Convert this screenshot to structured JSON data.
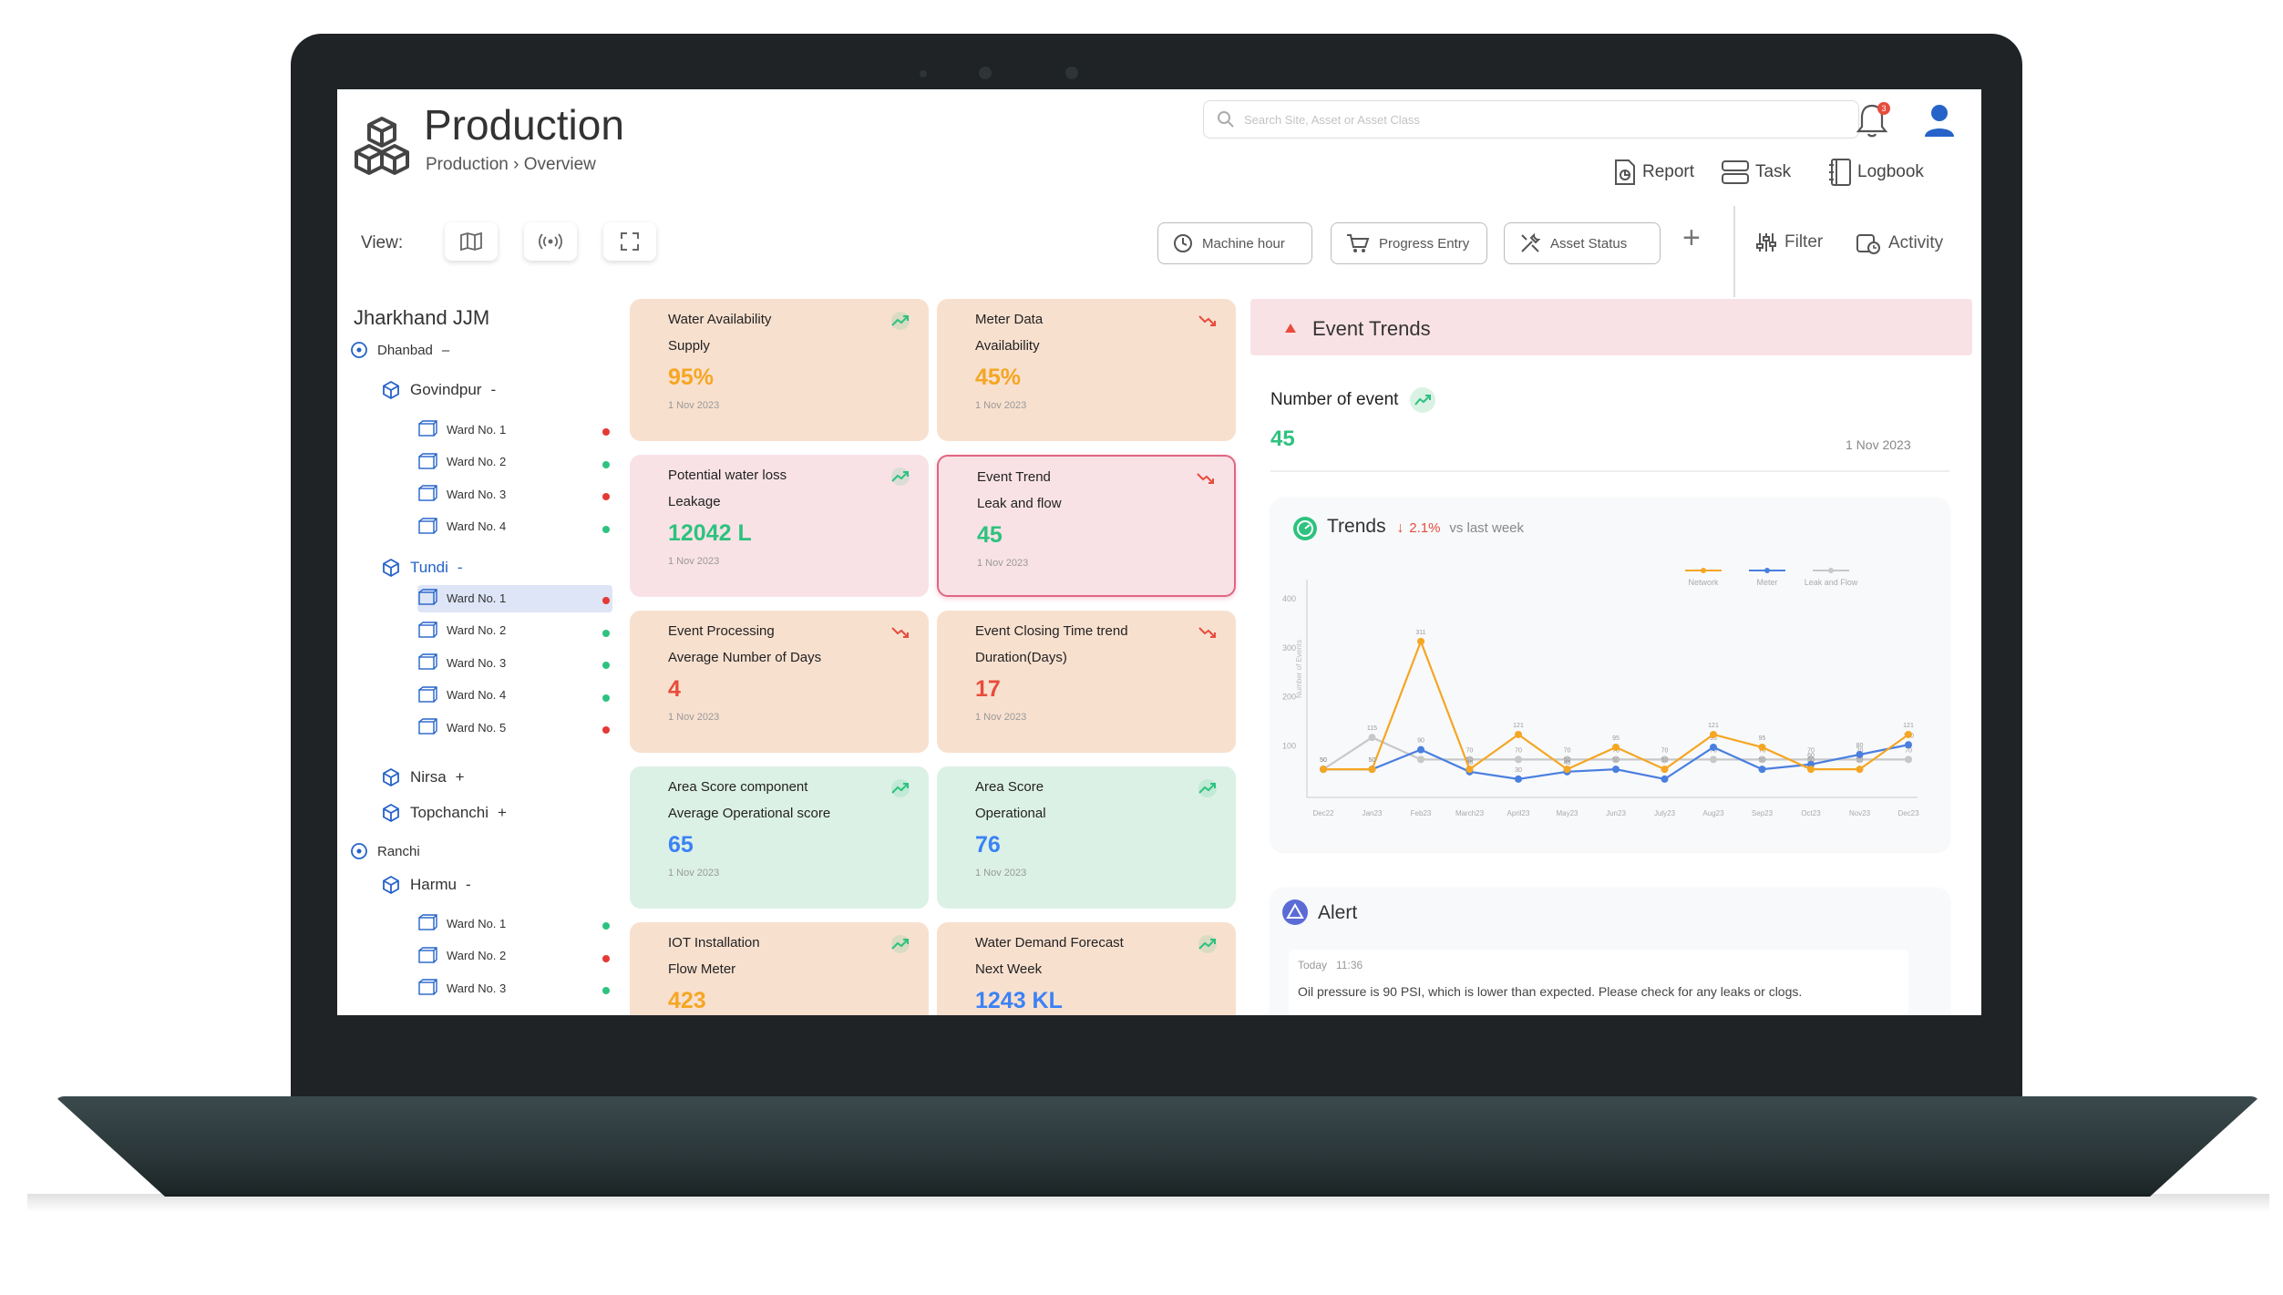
{
  "header": {
    "title": "Production",
    "breadcrumb": "Production › Overview",
    "search_placeholder": "Search Site, Asset or Asset Class",
    "notification_count": "3",
    "links": {
      "report": "Report",
      "task": "Task",
      "logbook": "Logbook"
    }
  },
  "toolbar": {
    "view_label": "View:",
    "buttons": {
      "machine_hour": "Machine hour",
      "progress_entry": "Progress Entry",
      "asset_status": "Asset Status"
    },
    "add": "+",
    "filter": "Filter",
    "activity": "Activity"
  },
  "sidebar": {
    "title": "Jharkhand JJM",
    "dhanbad": {
      "label": "Dhanbad",
      "toggle": "–"
    },
    "govindpur": {
      "label": "Govindpur",
      "toggle": "-",
      "wards": [
        {
          "label": "Ward No. 1",
          "status": "red"
        },
        {
          "label": "Ward No. 2",
          "status": "green"
        },
        {
          "label": "Ward No. 3",
          "status": "red"
        },
        {
          "label": "Ward No. 4",
          "status": "green"
        }
      ]
    },
    "tundi": {
      "label": "Tundi",
      "toggle": "-",
      "wards": [
        {
          "label": "Ward No. 1",
          "status": "red"
        },
        {
          "label": "Ward No. 2",
          "status": "green"
        },
        {
          "label": "Ward No. 3",
          "status": "green"
        },
        {
          "label": "Ward No. 4",
          "status": "green"
        },
        {
          "label": "Ward No. 5",
          "status": "red"
        }
      ]
    },
    "nirsa": {
      "label": "Nirsa",
      "toggle": "+"
    },
    "topchanchi": {
      "label": "Topchanchi",
      "toggle": "+"
    },
    "ranchi": {
      "label": "Ranchi"
    },
    "harmu": {
      "label": "Harmu",
      "toggle": "-",
      "wards": [
        {
          "label": "Ward No. 1",
          "status": "green"
        },
        {
          "label": "Ward No. 2",
          "status": "red"
        },
        {
          "label": "Ward No. 3",
          "status": "green"
        }
      ]
    }
  },
  "cards": [
    {
      "line1": "Water Availability",
      "line2": "Supply",
      "value": "95%",
      "date": "1 Nov 2023",
      "trend": "up",
      "value_color": "#f5a623"
    },
    {
      "line1": "Meter Data",
      "line2": "Availability",
      "value": "45%",
      "date": "1 Nov 2023",
      "trend": "down",
      "value_color": "#f5a623"
    },
    {
      "line1": "Potential water loss",
      "line2": "Leakage",
      "value": "12042 L",
      "date": "1 Nov 2023",
      "trend": "up",
      "value_color": "#2ec27e"
    },
    {
      "line1": "Event Trend",
      "line2": "Leak and flow",
      "value": "45",
      "date": "1 Nov 2023",
      "trend": "down",
      "value_color": "#2ec27e"
    },
    {
      "line1": "Event Processing",
      "line2": "Average Number of Days",
      "value": "4",
      "date": "1 Nov 2023",
      "trend": "down",
      "value_color": "#e74c3c"
    },
    {
      "line1": "Event Closing Time trend",
      "line2": "Duration(Days)",
      "value": "17",
      "date": "1 Nov 2023",
      "trend": "down",
      "value_color": "#e74c3c"
    },
    {
      "line1": "Area Score component",
      "line2": "Average Operational score",
      "value": "65",
      "date": "1 Nov 2023",
      "trend": "up",
      "value_color": "#3b82f6"
    },
    {
      "line1": "Area Score",
      "line2": "Operational",
      "value": "76",
      "date": "1 Nov 2023",
      "trend": "up",
      "value_color": "#3b82f6"
    },
    {
      "line1": "IOT Installation",
      "line2": "Flow Meter",
      "value": "423",
      "date": "",
      "trend": "up",
      "value_color": "#f5a623"
    },
    {
      "line1": "Water Demand Forecast",
      "line2": "Next Week",
      "value": "1243 KL",
      "date": "",
      "trend": "up",
      "value_color": "#3b82f6"
    }
  ],
  "event_trends": {
    "title": "Event Trends",
    "number_label": "Number of event",
    "number_value": "45",
    "date": "1 Nov 2023"
  },
  "trends": {
    "title": "Trends",
    "change": "2.1%",
    "suffix": "vs last week"
  },
  "chart_data": {
    "type": "line",
    "title": "",
    "ylabel": "Number of Events",
    "categories": [
      "Dec22",
      "Jan23",
      "Feb23",
      "March23",
      "April23",
      "May23",
      "Jun23",
      "July23",
      "Aug23",
      "Sep23",
      "Oct23",
      "Nov23",
      "Dec23"
    ],
    "ylim": [
      0,
      400
    ],
    "yticks": [
      100,
      200,
      300,
      400
    ],
    "series": [
      {
        "name": "Network",
        "color": "#f5a623",
        "values": [
          50,
          50,
          311,
          50,
          121,
          50,
          95,
          50,
          121,
          95,
          50,
          50,
          121
        ]
      },
      {
        "name": "Meter",
        "color": "#4a7fe0",
        "values": [
          50,
          50,
          90,
          45,
          30,
          45,
          50,
          30,
          95,
          50,
          60,
          80,
          100
        ]
      },
      {
        "name": "Leak and Flow",
        "color": "#c8c8c8",
        "values": [
          50,
          115,
          70,
          70,
          70,
          70,
          70,
          70,
          70,
          70,
          70,
          70,
          70
        ]
      }
    ]
  },
  "alert": {
    "title": "Alert",
    "time": "Today   11:36",
    "message": "Oil pressure is 90 PSI, which is lower than expected. Please check for any leaks or clogs."
  }
}
